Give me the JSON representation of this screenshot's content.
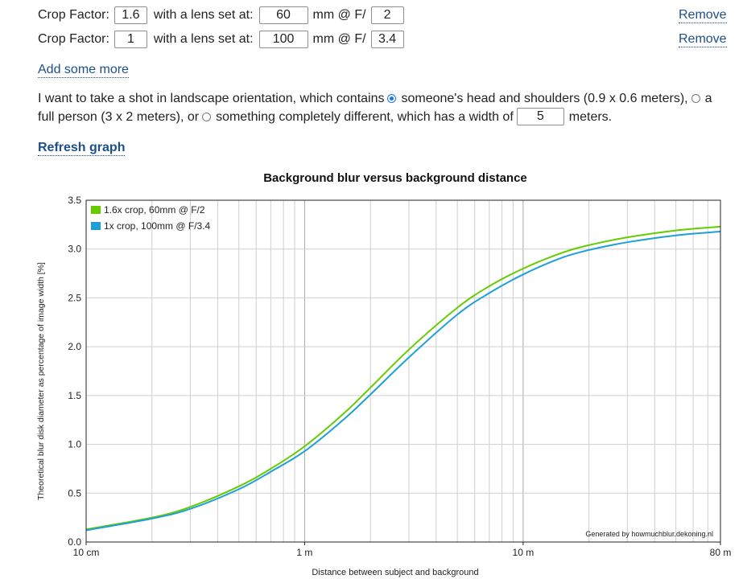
{
  "lenses": [
    {
      "crop_label": "Crop Factor:",
      "crop": "1.6",
      "lens_label": "with a lens set at:",
      "focal": "60",
      "mm_label": "mm @ F/",
      "fnum": "2",
      "remove": "Remove"
    },
    {
      "crop_label": "Crop Factor:",
      "crop": "1",
      "lens_label": "with a lens set at:",
      "focal": "100",
      "mm_label": "mm @ F/",
      "fnum": "3.4",
      "remove": "Remove"
    }
  ],
  "add_more": "Add some more",
  "sentence": {
    "intro": "I want to take a shot in landscape orientation, which contains",
    "option1": "someone's head and shoulders (0.9 x 0.6 meters),",
    "option2": "a full person (3 x 2 meters), or",
    "option3": "something completely different, which has a width of",
    "width_value": "5",
    "unit": "meters.",
    "selected": "option1"
  },
  "refresh": "Refresh graph",
  "chart_data": {
    "type": "line",
    "title": "Background blur versus background distance",
    "xlabel": "Distance between subject and background",
    "ylabel": "Theoretical blur disk diameter as percentage of image width [%]",
    "x_scale": "log",
    "xlim": [
      0.1,
      80
    ],
    "ylim": [
      0,
      3.5
    ],
    "x_ticks": [
      {
        "value": 0.1,
        "label": "10 cm"
      },
      {
        "value": 1,
        "label": "1 m"
      },
      {
        "value": 10,
        "label": "10 m"
      },
      {
        "value": 80,
        "label": "80 m"
      }
    ],
    "y_ticks": [
      "0.0",
      "0.5",
      "1.0",
      "1.5",
      "2.0",
      "2.5",
      "3.0",
      "3.5"
    ],
    "grid": true,
    "legend_position": "top-left",
    "footnote": "Generated by howmuchblur.dekoning.nl",
    "series": [
      {
        "name": "1.6x crop, 60mm @ F/2",
        "color": "#66cc00",
        "x": [
          0.1,
          0.2,
          0.3,
          0.5,
          0.7,
          1,
          1.5,
          2,
          3,
          5,
          7,
          10,
          15,
          20,
          30,
          50,
          80
        ],
        "y": [
          0.13,
          0.25,
          0.36,
          0.57,
          0.75,
          0.98,
          1.31,
          1.58,
          1.97,
          2.4,
          2.62,
          2.8,
          2.96,
          3.04,
          3.12,
          3.19,
          3.23
        ]
      },
      {
        "name": "1x crop, 100mm @ F/3.4",
        "color": "#1e9fd8",
        "x": [
          0.1,
          0.2,
          0.3,
          0.5,
          0.7,
          1,
          1.5,
          2,
          3,
          5,
          7,
          10,
          15,
          20,
          30,
          50,
          80
        ],
        "y": [
          0.12,
          0.24,
          0.34,
          0.54,
          0.72,
          0.93,
          1.25,
          1.51,
          1.89,
          2.33,
          2.55,
          2.74,
          2.91,
          2.99,
          3.07,
          3.14,
          3.18
        ]
      }
    ]
  }
}
